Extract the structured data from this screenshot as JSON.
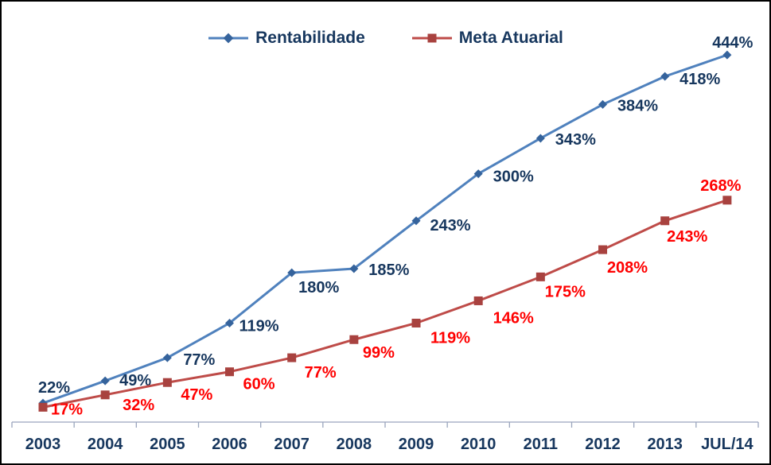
{
  "chart_data": {
    "type": "line",
    "categories": [
      "2003",
      "2004",
      "2005",
      "2006",
      "2007",
      "2008",
      "2009",
      "2010",
      "2011",
      "2012",
      "2013",
      "JUL/14"
    ],
    "series": [
      {
        "name": "Rentabilidade",
        "values": [
          22,
          49,
          77,
          119,
          180,
          185,
          243,
          300,
          343,
          384,
          418,
          444
        ],
        "labels": [
          "22%",
          "49%",
          "77%",
          "119%",
          "180%",
          "185%",
          "243%",
          "300%",
          "343%",
          "384%",
          "418%",
          "444%"
        ],
        "marker": "diamond",
        "line_color": "#4f81bd",
        "marker_color": "#35639c",
        "label_color": "#17375e"
      },
      {
        "name": "Meta Atuarial",
        "values": [
          17,
          32,
          47,
          60,
          77,
          99,
          119,
          146,
          175,
          208,
          243,
          268
        ],
        "labels": [
          "17%",
          "32%",
          "47%",
          "60%",
          "77%",
          "99%",
          "119%",
          "146%",
          "175%",
          "208%",
          "243%",
          "268%"
        ],
        "marker": "square",
        "line_color": "#be4b48",
        "marker_color": "#a8423f",
        "label_color": "#ff0000"
      }
    ],
    "title": "",
    "xlabel": "",
    "ylabel": "",
    "ylim": [
      0,
      470
    ],
    "grid": false,
    "legend_position": "top-center",
    "axis_color": "#9aa5bd",
    "axis_label_color": "#17375e",
    "label_offsets": [
      [
        [
          14,
          -20
        ],
        [
          38,
          -1
        ],
        [
          40,
          2
        ],
        [
          37,
          3
        ],
        [
          34,
          18
        ],
        [
          44,
          1
        ],
        [
          43,
          5
        ],
        [
          44,
          3
        ],
        [
          44,
          1
        ],
        [
          44,
          1
        ],
        [
          44,
          3
        ],
        [
          7,
          -16
        ]
      ],
      [
        [
          30,
          2
        ],
        [
          42,
          12
        ],
        [
          37,
          15
        ],
        [
          37,
          15
        ],
        [
          36,
          18
        ],
        [
          31,
          16
        ],
        [
          43,
          18
        ],
        [
          44,
          21
        ],
        [
          31,
          18
        ],
        [
          31,
          22
        ],
        [
          28,
          19
        ],
        [
          -8,
          -19
        ]
      ]
    ]
  }
}
